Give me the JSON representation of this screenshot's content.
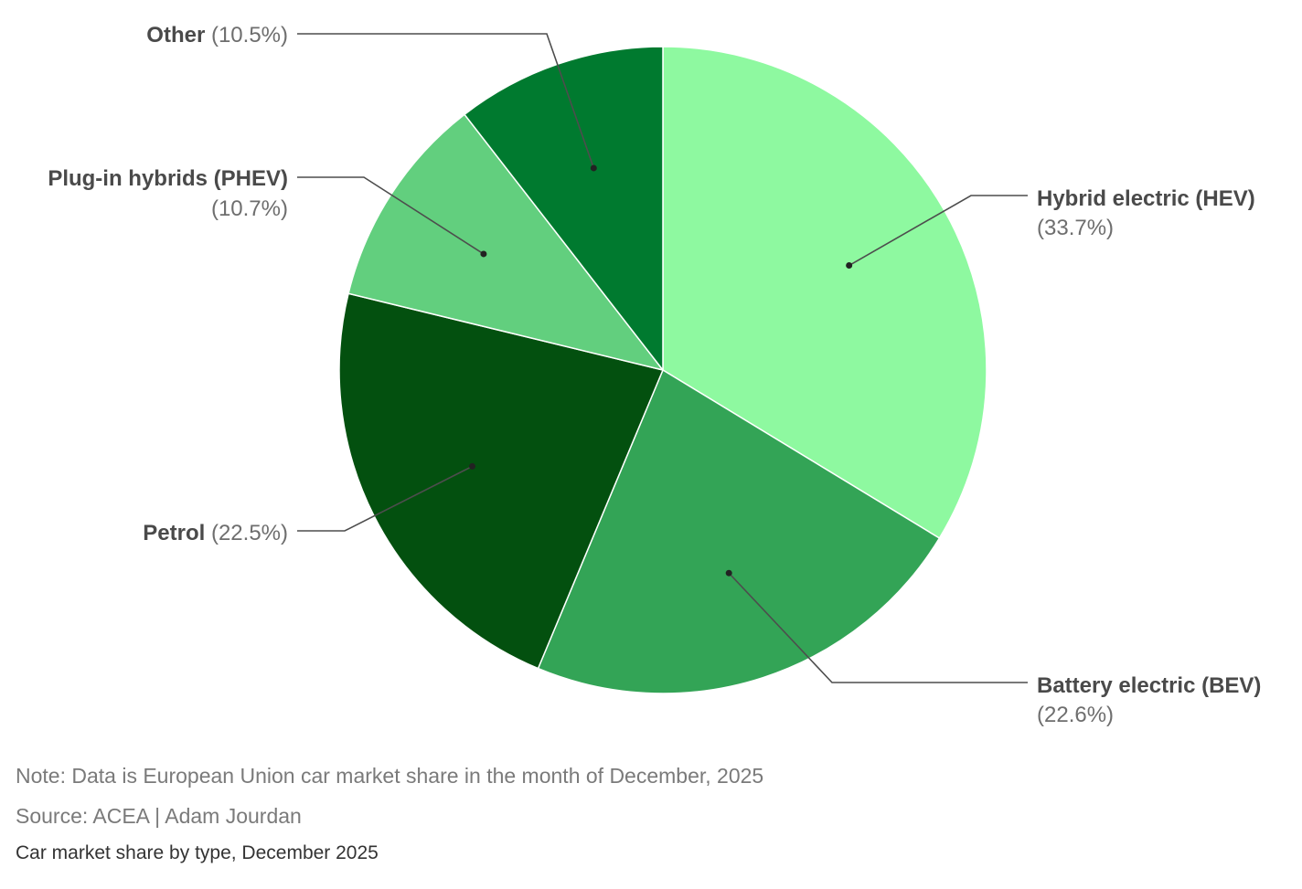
{
  "chart_data": {
    "type": "pie",
    "slices": [
      {
        "label": "Hybrid electric (HEV)",
        "value_text": "(33.7%)",
        "value": 33.7,
        "color": "#8ef9a0"
      },
      {
        "label": "Battery electric (BEV)",
        "value_text": "(22.6%)",
        "value": 22.6,
        "color": "#33a456"
      },
      {
        "label": "Petrol",
        "value_text": "(22.5%)",
        "value": 22.5,
        "color": "#03500f"
      },
      {
        "label": "Plug-in hybrids (PHEV)",
        "value_text": "(10.7%)",
        "value": 10.7,
        "color": "#62cf7e"
      },
      {
        "label": "Other",
        "value_text": "(10.5%)",
        "value": 10.5,
        "color": "#007a2f"
      }
    ],
    "start_angle": "12 o'clock",
    "direction": "clockwise",
    "legend": "none",
    "labels": "outside with leader lines"
  },
  "footer": {
    "note": "Note: Data is European Union car market share in the month of December, 2025",
    "source": "Source: ACEA | Adam Jourdan",
    "title": "Car market share by type, December 2025"
  }
}
